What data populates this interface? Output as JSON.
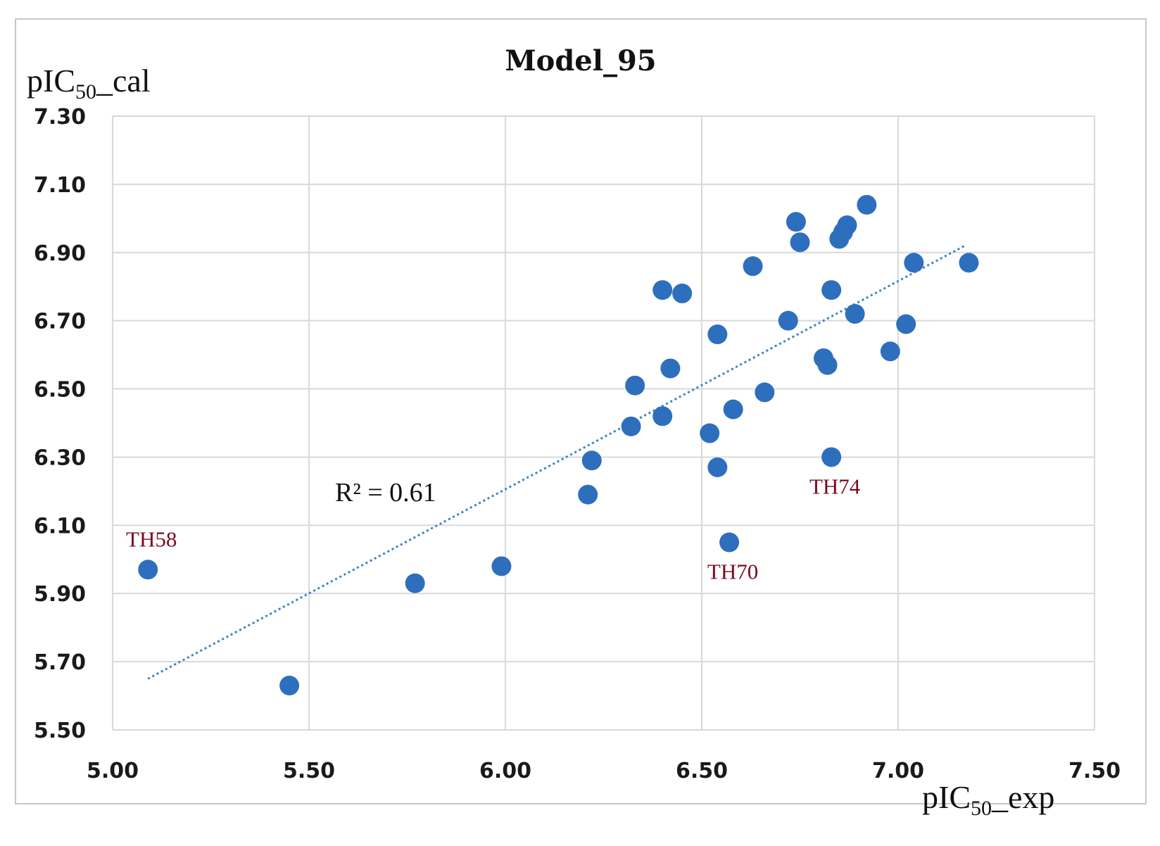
{
  "chart_data": {
    "type": "scatter",
    "title": "Model_95",
    "ylabel": {
      "main": "pIC",
      "sub": "50",
      "suffix": "_cal"
    },
    "xlabel": {
      "main": "pIC",
      "sub": "50",
      "suffix": "_exp"
    },
    "xlim": [
      5.0,
      7.5
    ],
    "ylim": [
      5.5,
      7.3
    ],
    "xticks": [
      5.0,
      5.5,
      6.0,
      6.5,
      7.0,
      7.5
    ],
    "xtick_labels": [
      "5.00",
      "5.50",
      "6.00",
      "6.50",
      "7.00",
      "7.50"
    ],
    "yticks": [
      5.5,
      5.7,
      5.9,
      6.1,
      6.3,
      6.5,
      6.7,
      6.9,
      7.1,
      7.3
    ],
    "ytick_labels": [
      "5.50",
      "5.70",
      "5.90",
      "6.10",
      "6.30",
      "6.50",
      "6.70",
      "6.90",
      "7.10",
      "7.30"
    ],
    "grid": true,
    "point_color": "#2e6fbd",
    "trendline_color": "#3b82c4",
    "annotation_color": "#7a0b1e",
    "r_squared_label": "R² = 0.61",
    "trendline": {
      "x": [
        5.09,
        7.17
      ],
      "y": [
        5.65,
        6.92
      ]
    },
    "points": [
      {
        "x": 5.09,
        "y": 5.97,
        "label": "TH58"
      },
      {
        "x": 5.45,
        "y": 5.63
      },
      {
        "x": 5.77,
        "y": 5.93
      },
      {
        "x": 5.99,
        "y": 5.98
      },
      {
        "x": 6.21,
        "y": 6.19
      },
      {
        "x": 6.22,
        "y": 6.29
      },
      {
        "x": 6.32,
        "y": 6.39
      },
      {
        "x": 6.33,
        "y": 6.51
      },
      {
        "x": 6.4,
        "y": 6.42
      },
      {
        "x": 6.4,
        "y": 6.79
      },
      {
        "x": 6.42,
        "y": 6.56
      },
      {
        "x": 6.45,
        "y": 6.78
      },
      {
        "x": 6.52,
        "y": 6.37
      },
      {
        "x": 6.54,
        "y": 6.27
      },
      {
        "x": 6.54,
        "y": 6.66
      },
      {
        "x": 6.57,
        "y": 6.05,
        "label": "TH70"
      },
      {
        "x": 6.58,
        "y": 6.44
      },
      {
        "x": 6.63,
        "y": 6.86
      },
      {
        "x": 6.66,
        "y": 6.49
      },
      {
        "x": 6.72,
        "y": 6.7
      },
      {
        "x": 6.74,
        "y": 6.99
      },
      {
        "x": 6.75,
        "y": 6.93
      },
      {
        "x": 6.81,
        "y": 6.59
      },
      {
        "x": 6.82,
        "y": 6.57
      },
      {
        "x": 6.83,
        "y": 6.79
      },
      {
        "x": 6.83,
        "y": 6.3,
        "label": "TH74"
      },
      {
        "x": 6.85,
        "y": 6.94
      },
      {
        "x": 6.86,
        "y": 6.96
      },
      {
        "x": 6.87,
        "y": 6.98
      },
      {
        "x": 6.89,
        "y": 6.72
      },
      {
        "x": 6.92,
        "y": 7.04
      },
      {
        "x": 6.98,
        "y": 6.61
      },
      {
        "x": 7.02,
        "y": 6.69
      },
      {
        "x": 7.04,
        "y": 6.87
      },
      {
        "x": 7.18,
        "y": 6.87
      }
    ]
  }
}
